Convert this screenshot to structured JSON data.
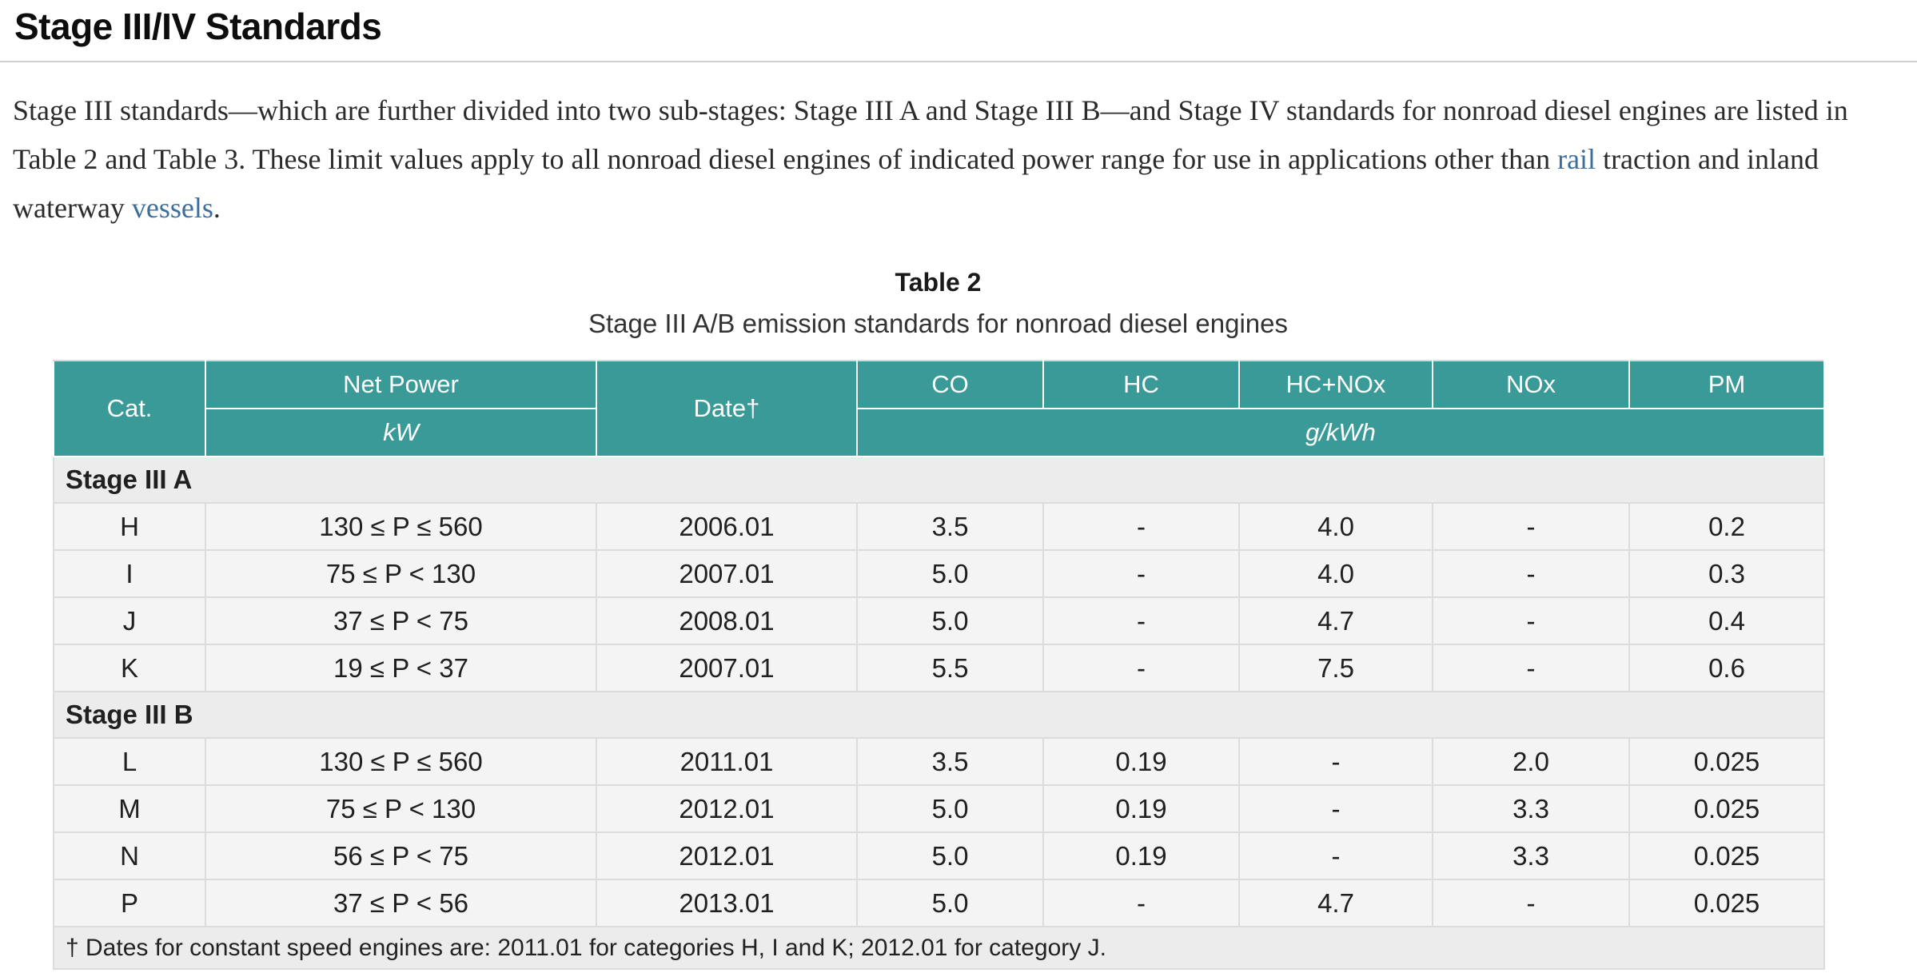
{
  "page": {
    "title": "Stage III/IV Standards",
    "paragraph": {
      "part1": "Stage III standards—which are further divided into two sub-stages: Stage III A and Stage III B—and Stage IV standards for nonroad diesel engines are listed in Table 2 and Table 3. These limit values apply to all nonroad diesel engines of indicated power range for use in applications other than ",
      "link1": "rail",
      "part2": " traction and inland waterway ",
      "link2": "vessels",
      "part3": "."
    }
  },
  "table": {
    "caption_title": "Table 2",
    "caption_subtitle": "Stage III A/B emission standards for nonroad diesel engines",
    "headers": {
      "cat": "Cat.",
      "net_power": "Net Power",
      "net_power_unit": "kW",
      "date": "Date†",
      "pollutants": [
        "CO",
        "HC",
        "HC+NOx",
        "NOx",
        "PM"
      ],
      "pollutant_unit": "g/kWh"
    },
    "sections": [
      {
        "label": "Stage III A",
        "rows": [
          {
            "cat": "H",
            "power": "130 ≤ P ≤ 560",
            "date": "2006.01",
            "values": [
              "3.5",
              "-",
              "4.0",
              "-",
              "0.2"
            ]
          },
          {
            "cat": "I",
            "power": "75 ≤ P < 130",
            "date": "2007.01",
            "values": [
              "5.0",
              "-",
              "4.0",
              "-",
              "0.3"
            ]
          },
          {
            "cat": "J",
            "power": "37 ≤ P < 75",
            "date": "2008.01",
            "values": [
              "5.0",
              "-",
              "4.7",
              "-",
              "0.4"
            ]
          },
          {
            "cat": "K",
            "power": "19 ≤ P < 37",
            "date": "2007.01",
            "values": [
              "5.5",
              "-",
              "7.5",
              "-",
              "0.6"
            ]
          }
        ]
      },
      {
        "label": "Stage III B",
        "rows": [
          {
            "cat": "L",
            "power": "130 ≤ P ≤ 560",
            "date": "2011.01",
            "values": [
              "3.5",
              "0.19",
              "-",
              "2.0",
              "0.025"
            ]
          },
          {
            "cat": "M",
            "power": "75 ≤ P < 130",
            "date": "2012.01",
            "values": [
              "5.0",
              "0.19",
              "-",
              "3.3",
              "0.025"
            ]
          },
          {
            "cat": "N",
            "power": "56 ≤ P < 75",
            "date": "2012.01",
            "values": [
              "5.0",
              "0.19",
              "-",
              "3.3",
              "0.025"
            ]
          },
          {
            "cat": "P",
            "power": "37 ≤ P < 56",
            "date": "2013.01",
            "values": [
              "5.0",
              "-",
              "4.7",
              "-",
              "0.025"
            ]
          }
        ]
      }
    ],
    "footnote": "† Dates for constant speed engines are: 2011.01 for categories H, I and K; 2012.01 for category J."
  },
  "colors": {
    "header_bg": "#3a9a98",
    "header_text": "#ffffff",
    "link": "#3c6e9e",
    "section_bg": "#ececec",
    "row_bg": "#f4f4f4",
    "border": "#dcdcdc"
  }
}
